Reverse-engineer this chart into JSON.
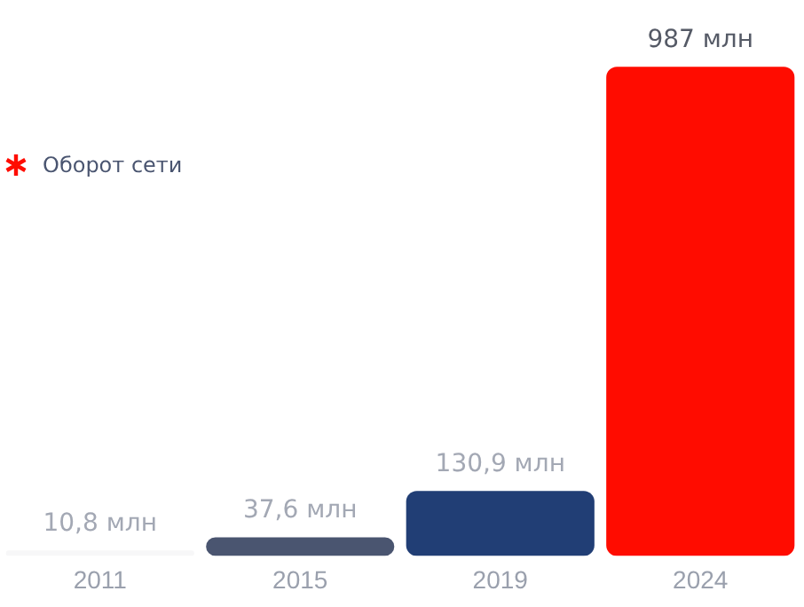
{
  "chart_data": {
    "type": "bar",
    "categories": [
      "2011",
      "2015",
      "2019",
      "2024"
    ],
    "values": [
      10.8,
      37.6,
      130.9,
      987
    ],
    "colors": [
      "#f7f7f8",
      "#4a5570",
      "#213e75",
      "#ff0c00"
    ],
    "value_labels": [
      "10,8 млн",
      "37,6 млн",
      "130,9 млн",
      "987 млн"
    ],
    "annotations": [
      "Оборот сети"
    ],
    "grid": false,
    "legend": false
  }
}
